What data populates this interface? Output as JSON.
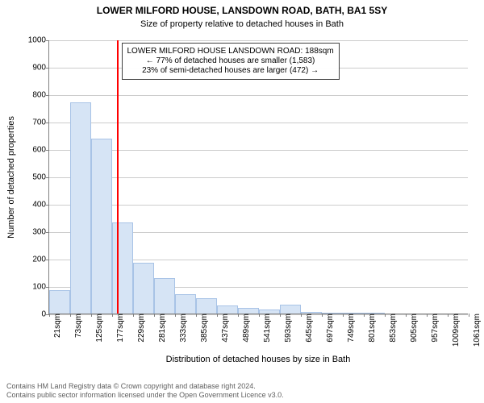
{
  "chart": {
    "type": "histogram",
    "title": "LOWER MILFORD HOUSE, LANSDOWN ROAD, BATH, BA1 5SY",
    "subtitle": "Size of property relative to detached houses in Bath",
    "ylabel": "Number of detached properties",
    "xlabel": "Distribution of detached houses by size in Bath",
    "title_fontsize": 12,
    "subtitle_fontsize": 11,
    "label_fontsize": 11,
    "tick_fontsize": 10,
    "annotation_fontsize": 10,
    "attribution_fontsize": 9,
    "background_color": "#ffffff",
    "grid_color": "#cccccc",
    "axis_color": "#808080",
    "bar_fill": "#d6e4f5",
    "bar_stroke": "#a8c3e6",
    "marker_color": "#ff0000",
    "ylim": [
      0,
      1000
    ],
    "ytick_step": 100,
    "yticks": [
      0,
      100,
      200,
      300,
      400,
      500,
      600,
      700,
      800,
      900,
      1000
    ],
    "xtick_step": 52,
    "xtick_start": 21,
    "xticks": [
      21,
      73,
      125,
      177,
      229,
      281,
      333,
      385,
      437,
      489,
      541,
      593,
      645,
      697,
      749,
      801,
      853,
      905,
      957,
      1009,
      1061
    ],
    "xtick_suffix": "sqm",
    "bin_width": 52,
    "bins_start": 21,
    "bins": [
      85,
      770,
      638,
      332,
      185,
      130,
      72,
      55,
      30,
      22,
      14,
      32,
      5,
      3,
      2,
      2,
      0,
      0,
      0,
      0
    ],
    "marker_x": 188,
    "annotation": {
      "line1": "LOWER MILFORD HOUSE LANSDOWN ROAD: 188sqm",
      "line2": "← 77% of detached houses are smaller (1,583)",
      "line3": "23% of semi-detached houses are larger (472) →"
    },
    "attribution": {
      "line1": "Contains HM Land Registry data © Crown copyright and database right 2024.",
      "line2": "Contains public sector information licensed under the Open Government Licence v3.0."
    }
  }
}
